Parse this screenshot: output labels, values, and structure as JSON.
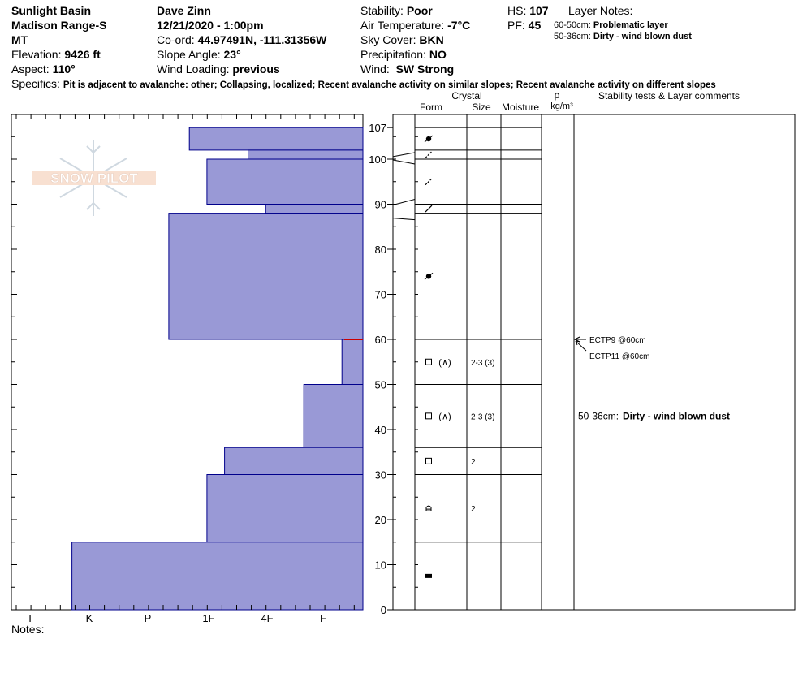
{
  "header": {
    "location_line1": "Sunlight Basin",
    "location_line2": "Madison Range-S",
    "location_line3": "MT",
    "elevation_label": "Elevation:",
    "elevation_value": "9426 ft",
    "aspect_label": "Aspect:",
    "aspect_value": "110°",
    "observer": "Dave Zinn",
    "datetime": "12/21/2020 - 1:00pm",
    "coord_label": "Co-ord:",
    "coord_value": "44.97491N, -111.31356W",
    "slope_label": "Slope Angle:",
    "slope_value": "23°",
    "wind_loading_label": "Wind Loading:",
    "wind_loading_value": "previous",
    "stability_label": "Stability:",
    "stability_value": "Poor",
    "air_temp_label": "Air Temperature:",
    "air_temp_value": "-7°C",
    "sky_label": "Sky Cover:",
    "sky_value": "BKN",
    "precip_label": "Precipitation:",
    "precip_value": "NO",
    "wind_label": "Wind:",
    "wind_value": "SW Strong",
    "hs_label": "HS:",
    "hs_value": "107",
    "pf_label": "PF:",
    "pf_value": "45",
    "layer_notes_label": "Layer Notes:",
    "layer_note_1_range": "60-50cm:",
    "layer_note_1_text": "Problematic layer",
    "layer_note_2_range": "50-36cm:",
    "layer_note_2_text": "Dirty - wind blown dust",
    "specifics_label": "Specifics:",
    "specifics_value": "Pit is adjacent to avalanche: other; Collapsing, localized; Recent avalanche activity on similar slopes; Recent avalanche activity on different slopes",
    "notes_label": "Notes:"
  },
  "logo_text": "SNOW PILOT",
  "columns": {
    "crystal": "Crystal",
    "form": "Form",
    "size": "Size",
    "moisture": "Moisture",
    "rho": "ρ",
    "density_unit": "kg/m³",
    "stability": "Stability tests & Layer comments"
  },
  "colors": {
    "profile_fill": "#9999d6",
    "profile_stroke": "#00008b",
    "weak_layer_marker": "#cc0000",
    "grid": "#000000"
  },
  "chart_data": {
    "type": "bar",
    "orientation": "horizontal-stepped",
    "title": "",
    "ylabel": "",
    "xlabel": "",
    "ylim": [
      0,
      110
    ],
    "y_ticks": [
      0,
      10,
      20,
      30,
      40,
      50,
      60,
      70,
      80,
      90,
      100
    ],
    "hs_tick": 107,
    "x_ticks": [
      "I",
      "K",
      "P",
      "1F",
      "4F",
      "F"
    ],
    "hardness_scale": {
      "I": 0,
      "K": 1,
      "P": 2,
      "1F": 3,
      "4F": 4,
      "F": 5
    },
    "layers": [
      {
        "top": 107,
        "bottom": 102,
        "hardness_value": 2.7,
        "form": "rounded",
        "size": "",
        "moisture": ""
      },
      {
        "top": 102,
        "bottom": 100,
        "hardness_value": 3.7,
        "form": "decomposing",
        "size": "",
        "moisture": ""
      },
      {
        "top": 100,
        "bottom": 90,
        "hardness_value": 3.0,
        "form": "decomposing",
        "size": "",
        "moisture": ""
      },
      {
        "top": 90,
        "bottom": 88,
        "hardness_value": 4.0,
        "form": "decomposing",
        "size": "",
        "moisture": ""
      },
      {
        "top": 88,
        "bottom": 60,
        "hardness_value": 2.35,
        "form": "rounded",
        "size": "",
        "moisture": ""
      },
      {
        "top": 60,
        "bottom": 50,
        "hardness_value": 5.3,
        "form": "faceted-depth-hoar",
        "size": "2-3 (3)",
        "moisture": ""
      },
      {
        "top": 50,
        "bottom": 36,
        "hardness_value": 4.65,
        "form": "faceted-depth-hoar",
        "size": "2-3 (3)",
        "moisture": ""
      },
      {
        "top": 36,
        "bottom": 30,
        "hardness_value": 3.3,
        "form": "faceted",
        "size": "2",
        "moisture": ""
      },
      {
        "top": 30,
        "bottom": 15,
        "hardness_value": 3.0,
        "form": "faceted-rounding",
        "size": "2",
        "moisture": ""
      },
      {
        "top": 15,
        "bottom": 0,
        "hardness_value": 0.7,
        "form": "melt-freeze",
        "size": "",
        "moisture": ""
      }
    ],
    "stability_tests": [
      {
        "label": "ECTP9 @60cm",
        "depth": 60
      },
      {
        "label": "ECTP11 @60cm",
        "depth": 60
      }
    ],
    "layer_comments": [
      {
        "range": "50-36cm:",
        "text": "Dirty - wind blown dust"
      }
    ],
    "weak_layer_depth": 60
  }
}
